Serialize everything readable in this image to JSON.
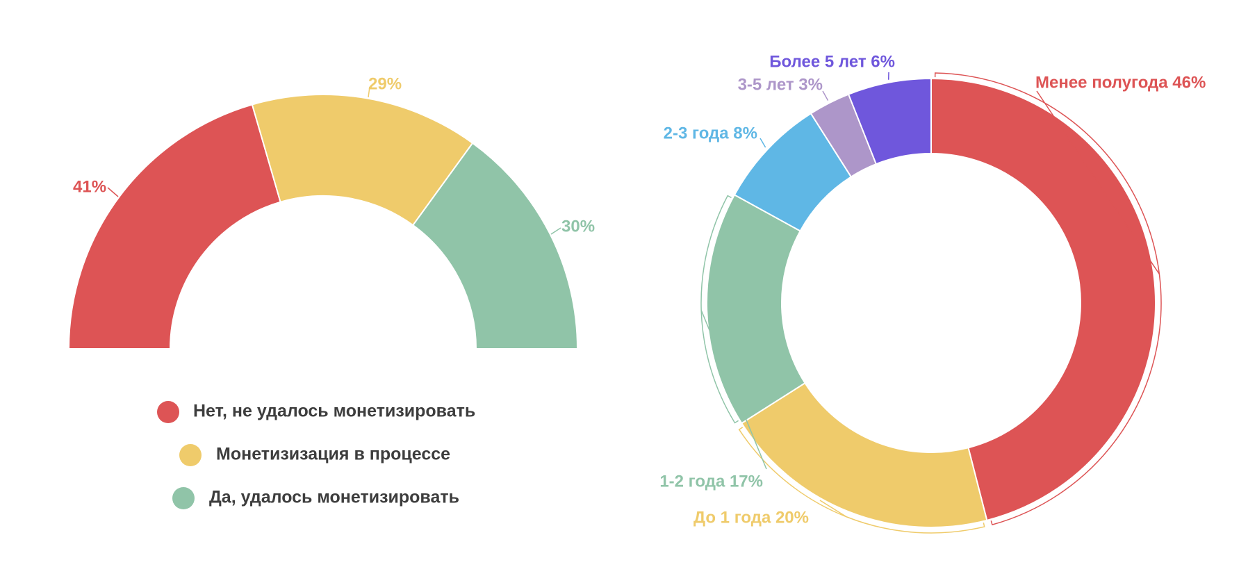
{
  "chart_data": [
    {
      "type": "pie",
      "variant": "semi-donut",
      "categories": [
        "Нет, не удалось монетизировать",
        "Монетизизация в процессе",
        "Да, удалось монетизировать"
      ],
      "values": [
        41,
        29,
        30
      ],
      "labels": [
        "41%",
        "29%",
        "30%"
      ],
      "colors": [
        "#dd5455",
        "#efcb6b",
        "#90c4a8"
      ],
      "legend": {
        "placement": "bottom",
        "items": [
          {
            "label": "Нет, не удалось монетизировать",
            "color": "#dd5455"
          },
          {
            "label": "Монетизизация в процессе",
            "color": "#efcb6b"
          },
          {
            "label": "Да, удалось монетизировать",
            "color": "#90c4a8"
          }
        ]
      }
    },
    {
      "type": "pie",
      "variant": "donut",
      "categories": [
        "Менее полугода",
        "До 1 года",
        "1-2 года",
        "2-3 года",
        "3-5 лет",
        "Более 5 лет"
      ],
      "values": [
        46,
        20,
        17,
        8,
        3,
        6
      ],
      "labels": [
        "Менее полугода 46%",
        "До 1 года 20%",
        "1-2 года 17%",
        "2-3 года 8%",
        "3-5 лет 3%",
        "Более 5 лет 6%"
      ],
      "colors": [
        "#dd5455",
        "#efcb6b",
        "#90c4a8",
        "#5fb7e5",
        "#ad96c9",
        "#6f57dc"
      ]
    }
  ]
}
